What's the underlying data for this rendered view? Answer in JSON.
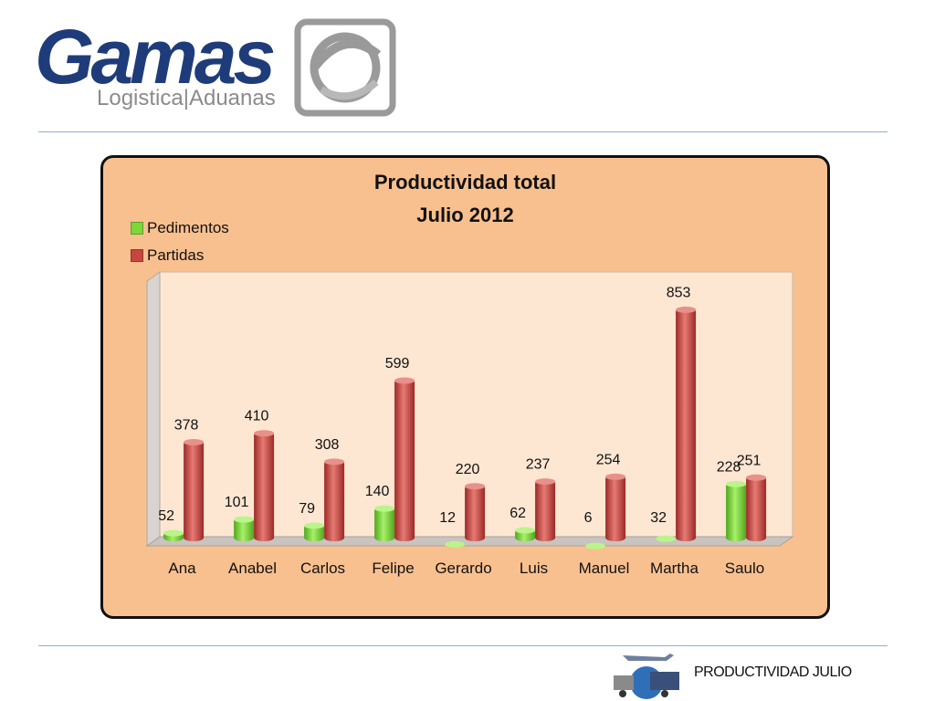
{
  "logo": {
    "brand": "Gamas",
    "tagline": "Logistica|Aduanas"
  },
  "footer": {
    "text": "PRODUCTIVIDAD JULIO"
  },
  "colors": {
    "pedimentos": "#7dd63a",
    "partidas": "#c9453f",
    "frame_bg": "#f9c08f",
    "plot_bg": "#fde6d2",
    "rule": "#8fb0d4",
    "brand": "#1f3c7a"
  },
  "chart_data": {
    "type": "bar",
    "title": "Productividad total",
    "subtitle": "Julio 2012",
    "categories": [
      "Ana",
      "Anabel",
      "Carlos",
      "Felipe",
      "Gerardo",
      "Luis",
      "Manuel",
      "Martha",
      "Saulo"
    ],
    "series": [
      {
        "name": "Pedimentos",
        "values": [
          52,
          101,
          79,
          140,
          12,
          62,
          6,
          32,
          228
        ]
      },
      {
        "name": "Partidas",
        "values": [
          378,
          410,
          308,
          599,
          220,
          237,
          254,
          853,
          251
        ]
      }
    ],
    "ylim": [
      0,
      900
    ],
    "grid": false,
    "legend": "top-left"
  }
}
